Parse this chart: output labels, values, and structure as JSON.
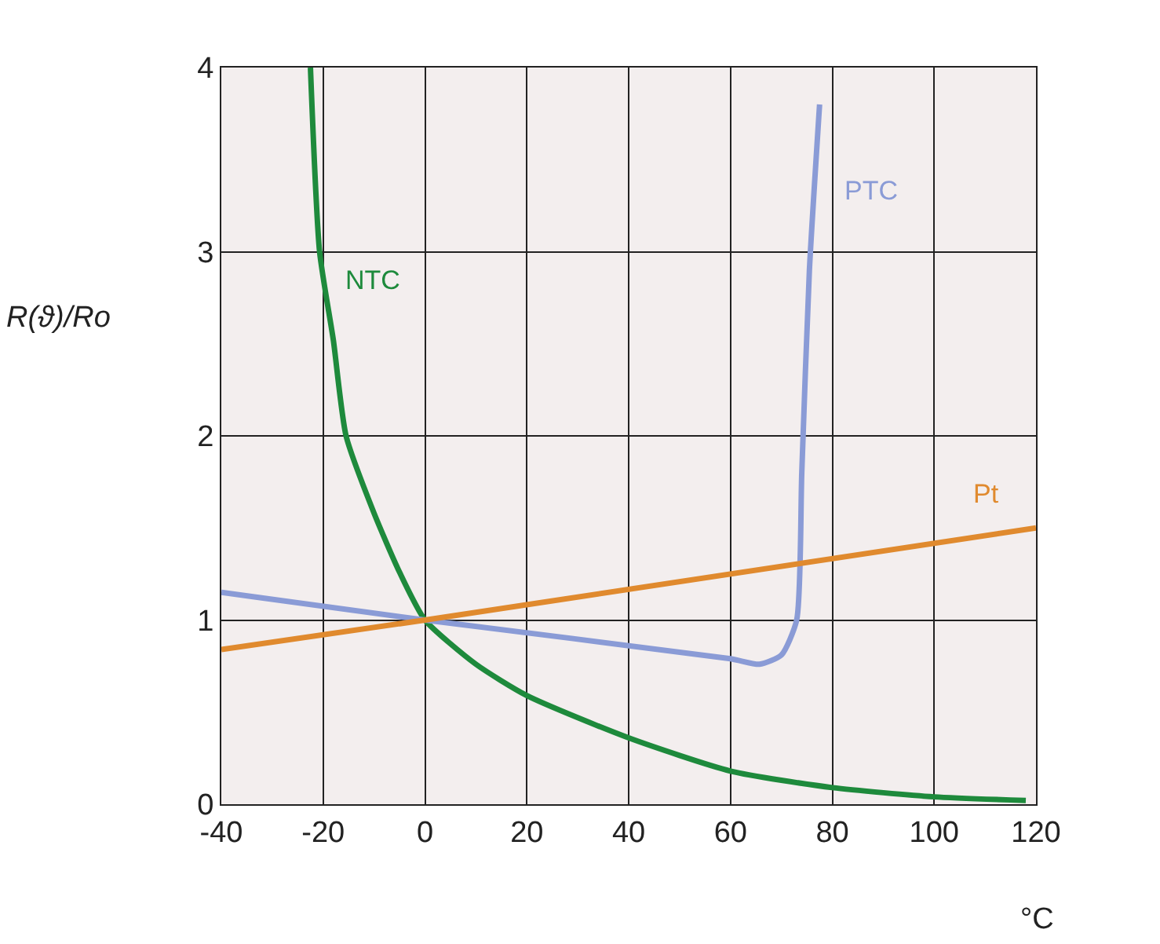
{
  "chart_data": {
    "type": "line",
    "xlabel": "°C",
    "ylabel": "R(ϑ)/Ro",
    "xlim": [
      -40,
      120
    ],
    "xticks": [
      -40,
      -20,
      0,
      20,
      40,
      60,
      80,
      100,
      120
    ],
    "ylim": [
      0,
      4
    ],
    "yticks": [
      0,
      1,
      2,
      3,
      4
    ],
    "grid": true,
    "legend": false,
    "marker": "none",
    "line_style": "solid",
    "series": [
      {
        "name": "NTC",
        "color": "#1e8a3c",
        "x": [
          -22.5,
          -20.7,
          -18,
          -15.5,
          -10,
          -5,
          0,
          10,
          20,
          40,
          60,
          80,
          100,
          118
        ],
        "values": [
          4,
          3,
          2.52,
          2,
          1.58,
          1.26,
          1,
          0.76,
          0.59,
          0.36,
          0.18,
          0.09,
          0.04,
          0.02
        ]
      },
      {
        "name": "PTC",
        "color": "#8a9bd6",
        "x": [
          -40,
          0,
          60,
          65.7,
          70,
          73,
          74,
          75.5,
          77.5
        ],
        "values": [
          1.15,
          1,
          0.79,
          0.76,
          0.81,
          1,
          1.8,
          2.9,
          3.8
        ]
      },
      {
        "name": "Pt",
        "color": "#e08a2e",
        "x": [
          -40,
          0,
          120
        ],
        "values": [
          0.84,
          1,
          1.5
        ]
      }
    ]
  }
}
